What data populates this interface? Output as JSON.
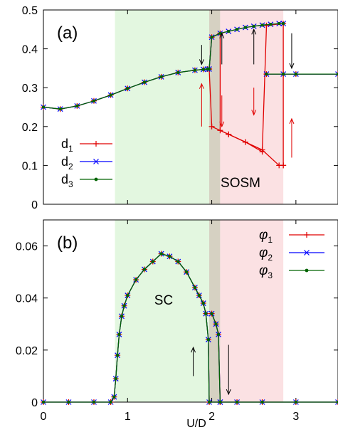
{
  "shared": {
    "xlabel": "U/D",
    "xlim": [
      0,
      3.5
    ],
    "x_ticks": [
      0,
      1,
      2,
      3
    ],
    "x_tick_labels": [
      "0",
      "1",
      "2",
      "3"
    ]
  },
  "regions": {
    "sc": {
      "x_range": [
        0.85,
        1.97
      ],
      "color": "#e3f7e0"
    },
    "overlap": {
      "x_range": [
        1.97,
        2.1
      ],
      "color": "#d6d1c2"
    },
    "sosm": {
      "x_range": [
        2.1,
        2.85
      ],
      "color": "#fbe1e3"
    }
  },
  "colors": {
    "s1": "#e00000",
    "s2": "#0000ff",
    "s3": "#006400",
    "arrow_red": "#e00000",
    "arrow_black": "#000000"
  },
  "chart_data": [
    {
      "type": "line",
      "panel_label": "(a)",
      "region_label": "SOSM",
      "ylim": [
        0,
        0.5
      ],
      "y_ticks": [
        0,
        0.1,
        0.2,
        0.3,
        0.4,
        0.5
      ],
      "y_tick_labels": [
        "0",
        "0.1",
        "0.2",
        "0.3",
        "0.4",
        "0.5"
      ],
      "legend": {
        "position": "bottom-left",
        "entries": [
          "d",
          "d",
          "d"
        ],
        "subscripts": [
          "1",
          "2",
          "3"
        ]
      },
      "series": [
        {
          "name": "d1",
          "forward": [
            [
              0,
              0.25
            ],
            [
              0.2,
              0.245
            ],
            [
              0.4,
              0.253
            ],
            [
              0.6,
              0.266
            ],
            [
              0.8,
              0.281
            ],
            [
              1.0,
              0.298
            ],
            [
              1.2,
              0.314
            ],
            [
              1.4,
              0.328
            ],
            [
              1.6,
              0.339
            ],
            [
              1.8,
              0.345
            ],
            [
              1.9,
              0.347
            ],
            [
              1.95,
              0.348
            ],
            [
              1.97,
              0.348
            ],
            [
              2.0,
              0.2
            ],
            [
              2.2,
              0.18
            ],
            [
              2.4,
              0.16
            ],
            [
              2.6,
              0.14
            ],
            [
              2.8,
              0.1
            ],
            [
              2.85,
              0.1
            ]
          ],
          "backward": [
            [
              2.85,
              0.1
            ],
            [
              2.85,
              0.465
            ],
            [
              2.65,
              0.46
            ],
            [
              2.6,
              0.135
            ],
            [
              2.4,
              0.16
            ],
            [
              2.2,
              0.18
            ],
            [
              2.1,
              0.19
            ],
            [
              2.1,
              0.44
            ],
            [
              2.0,
              0.43
            ],
            [
              1.97,
              0.348
            ]
          ],
          "tail": [
            [
              2.65,
              0.335
            ],
            [
              2.85,
              0.335
            ],
            [
              3.0,
              0.335
            ],
            [
              3.5,
              0.335
            ]
          ]
        },
        {
          "name": "d2",
          "forward": [
            [
              0,
              0.25
            ],
            [
              0.2,
              0.245
            ],
            [
              0.4,
              0.253
            ],
            [
              0.6,
              0.266
            ],
            [
              0.8,
              0.281
            ],
            [
              1.0,
              0.298
            ],
            [
              1.2,
              0.314
            ],
            [
              1.4,
              0.328
            ],
            [
              1.6,
              0.339
            ],
            [
              1.8,
              0.345
            ],
            [
              1.9,
              0.347
            ],
            [
              1.95,
              0.348
            ],
            [
              1.97,
              0.348
            ],
            [
              2.0,
              0.43
            ],
            [
              2.1,
              0.44
            ],
            [
              2.2,
              0.445
            ],
            [
              2.3,
              0.45
            ],
            [
              2.4,
              0.455
            ],
            [
              2.5,
              0.458
            ],
            [
              2.6,
              0.461
            ],
            [
              2.7,
              0.463
            ],
            [
              2.8,
              0.465
            ],
            [
              2.85,
              0.465
            ]
          ],
          "backward": [],
          "tail": [
            [
              2.65,
              0.335
            ],
            [
              2.85,
              0.335
            ],
            [
              3.0,
              0.335
            ],
            [
              3.5,
              0.335
            ]
          ]
        },
        {
          "name": "d3",
          "forward": [
            [
              0,
              0.25
            ],
            [
              0.2,
              0.245
            ],
            [
              0.4,
              0.253
            ],
            [
              0.6,
              0.266
            ],
            [
              0.8,
              0.281
            ],
            [
              1.0,
              0.298
            ],
            [
              1.2,
              0.314
            ],
            [
              1.4,
              0.328
            ],
            [
              1.6,
              0.339
            ],
            [
              1.8,
              0.345
            ],
            [
              1.9,
              0.347
            ],
            [
              1.95,
              0.348
            ],
            [
              1.97,
              0.348
            ],
            [
              2.0,
              0.43
            ],
            [
              2.1,
              0.44
            ],
            [
              2.2,
              0.445
            ],
            [
              2.3,
              0.45
            ],
            [
              2.4,
              0.455
            ],
            [
              2.5,
              0.458
            ],
            [
              2.6,
              0.461
            ],
            [
              2.7,
              0.463
            ],
            [
              2.8,
              0.465
            ],
            [
              2.85,
              0.465
            ]
          ],
          "backward": [],
          "tail": [
            [
              2.65,
              0.335
            ],
            [
              2.85,
              0.335
            ],
            [
              3.0,
              0.335
            ],
            [
              3.5,
              0.335
            ]
          ]
        }
      ],
      "arrows": [
        {
          "x": 1.88,
          "y_from": 0.41,
          "y_to": 0.36,
          "color": "black"
        },
        {
          "x": 2.12,
          "y_from": 0.36,
          "y_to": 0.44,
          "color": "black"
        },
        {
          "x": 2.5,
          "y_from": 0.36,
          "y_to": 0.45,
          "color": "black"
        },
        {
          "x": 2.95,
          "y_from": 0.44,
          "y_to": 0.35,
          "color": "black"
        },
        {
          "x": 1.88,
          "y_from": 0.2,
          "y_to": 0.31,
          "color": "red"
        },
        {
          "x": 2.12,
          "y_from": 0.28,
          "y_to": 0.2,
          "color": "red"
        },
        {
          "x": 2.5,
          "y_from": 0.3,
          "y_to": 0.23,
          "color": "red"
        },
        {
          "x": 2.95,
          "y_from": 0.12,
          "y_to": 0.22,
          "color": "red"
        }
      ]
    },
    {
      "type": "line",
      "panel_label": "(b)",
      "region_label": "SC",
      "ylim": [
        0,
        0.07
      ],
      "y_ticks": [
        0,
        0.02,
        0.04,
        0.06
      ],
      "y_tick_labels": [
        "0",
        "0.02",
        "0.04",
        "0.06"
      ],
      "legend": {
        "position": "top-right",
        "entries": [
          "φ",
          "φ",
          "φ"
        ],
        "subscripts": [
          "1",
          "2",
          "3"
        ]
      },
      "series": [
        {
          "name": "phi1",
          "forward": [
            [
              0,
              0
            ],
            [
              0.3,
              0
            ],
            [
              0.6,
              0
            ],
            [
              0.8,
              0
            ],
            [
              0.84,
              0.002
            ],
            [
              0.86,
              0.009
            ],
            [
              0.88,
              0.018
            ],
            [
              0.9,
              0.026
            ],
            [
              0.93,
              0.033
            ],
            [
              0.96,
              0.037
            ],
            [
              1.0,
              0.041
            ],
            [
              1.1,
              0.047
            ],
            [
              1.2,
              0.051
            ],
            [
              1.3,
              0.054
            ],
            [
              1.4,
              0.057
            ],
            [
              1.5,
              0.056
            ],
            [
              1.6,
              0.054
            ],
            [
              1.7,
              0.05
            ],
            [
              1.8,
              0.044
            ],
            [
              1.85,
              0.041
            ],
            [
              1.9,
              0.038
            ],
            [
              1.93,
              0.034
            ],
            [
              1.96,
              0.024
            ],
            [
              1.97,
              0.0
            ],
            [
              2.1,
              0.0
            ],
            [
              2.3,
              0.0
            ],
            [
              2.6,
              0.0
            ],
            [
              3.0,
              0.0
            ],
            [
              3.5,
              0.0
            ]
          ],
          "backward": [
            [
              2.1,
              0.0
            ],
            [
              2.08,
              0.026
            ],
            [
              2.05,
              0.03
            ],
            [
              2.0,
              0.034
            ]
          ],
          "tail": []
        },
        {
          "name": "phi2",
          "forward": [
            [
              0,
              0
            ],
            [
              0.3,
              0
            ],
            [
              0.6,
              0
            ],
            [
              0.8,
              0
            ],
            [
              0.84,
              0.002
            ],
            [
              0.86,
              0.009
            ],
            [
              0.88,
              0.018
            ],
            [
              0.9,
              0.026
            ],
            [
              0.93,
              0.033
            ],
            [
              0.96,
              0.037
            ],
            [
              1.0,
              0.041
            ],
            [
              1.1,
              0.047
            ],
            [
              1.2,
              0.051
            ],
            [
              1.3,
              0.054
            ],
            [
              1.4,
              0.057
            ],
            [
              1.5,
              0.056
            ],
            [
              1.6,
              0.054
            ],
            [
              1.7,
              0.05
            ],
            [
              1.8,
              0.044
            ],
            [
              1.85,
              0.041
            ],
            [
              1.9,
              0.038
            ],
            [
              1.93,
              0.034
            ],
            [
              1.96,
              0.024
            ],
            [
              1.97,
              0.0
            ],
            [
              2.1,
              0.0
            ],
            [
              2.3,
              0.0
            ],
            [
              2.6,
              0.0
            ],
            [
              3.0,
              0.0
            ],
            [
              3.5,
              0.0
            ]
          ],
          "backward": [
            [
              2.1,
              0.0
            ],
            [
              2.08,
              0.026
            ],
            [
              2.05,
              0.03
            ],
            [
              2.0,
              0.034
            ]
          ],
          "tail": []
        },
        {
          "name": "phi3",
          "forward": [
            [
              0,
              0
            ],
            [
              0.3,
              0
            ],
            [
              0.6,
              0
            ],
            [
              0.8,
              0
            ],
            [
              0.84,
              0.002
            ],
            [
              0.86,
              0.009
            ],
            [
              0.88,
              0.018
            ],
            [
              0.9,
              0.026
            ],
            [
              0.93,
              0.033
            ],
            [
              0.96,
              0.037
            ],
            [
              1.0,
              0.041
            ],
            [
              1.1,
              0.047
            ],
            [
              1.2,
              0.051
            ],
            [
              1.3,
              0.054
            ],
            [
              1.4,
              0.057
            ],
            [
              1.5,
              0.056
            ],
            [
              1.6,
              0.054
            ],
            [
              1.7,
              0.05
            ],
            [
              1.8,
              0.044
            ],
            [
              1.85,
              0.041
            ],
            [
              1.9,
              0.038
            ],
            [
              1.93,
              0.034
            ],
            [
              1.96,
              0.024
            ],
            [
              1.97,
              0.0
            ],
            [
              2.1,
              0.0
            ],
            [
              2.3,
              0.0
            ],
            [
              2.6,
              0.0
            ],
            [
              3.0,
              0.0
            ],
            [
              3.5,
              0.0
            ]
          ],
          "backward": [
            [
              2.1,
              0.0
            ],
            [
              2.08,
              0.026
            ],
            [
              2.05,
              0.03
            ],
            [
              2.0,
              0.034
            ]
          ],
          "tail": []
        }
      ],
      "arrows": [
        {
          "x": 1.78,
          "y_from": 0.01,
          "y_to": 0.021,
          "color": "black"
        },
        {
          "x": 2.2,
          "y_from": 0.022,
          "y_to": 0.003,
          "color": "black"
        }
      ]
    }
  ]
}
